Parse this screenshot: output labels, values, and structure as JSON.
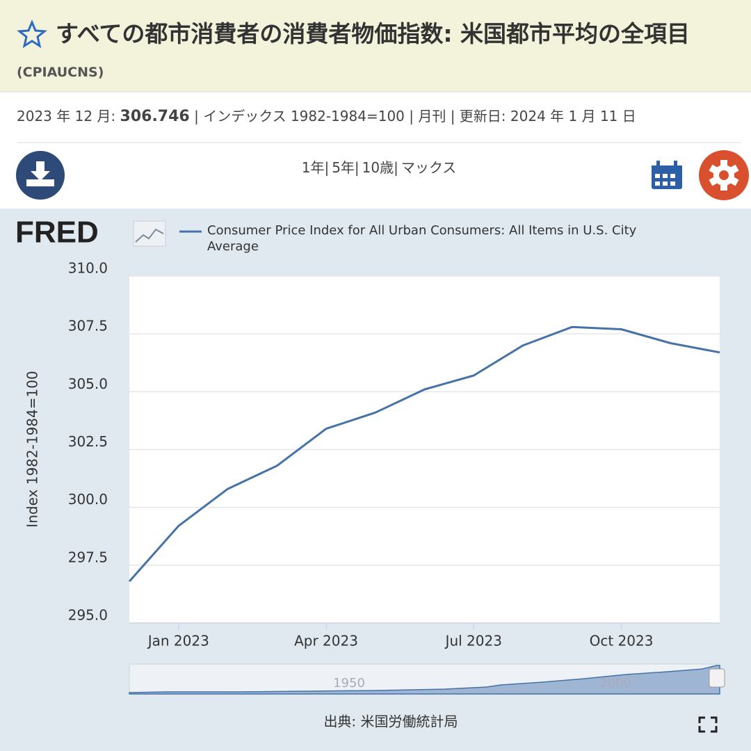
{
  "header": {
    "title": "すべての都市消費者の消費者物価指数: 米国都市平均の全項目",
    "series_id": "(CPIAUCNS)"
  },
  "info": {
    "date_label": "2023 年 12 月:",
    "value": "306.746",
    "rest": "| インデックス 1982-1984=100 | 月刊 | 更新日: 2024 年 1 月 11 日"
  },
  "toolbar": {
    "ranges": [
      "1年|",
      "5年|",
      "10歳|",
      "マックス"
    ]
  },
  "chart_data": {
    "type": "line",
    "logo": "FRED",
    "y_label": "Index 1982-1984=100",
    "x": [
      "2022-12",
      "2023-01",
      "2023-02",
      "2023-03",
      "2023-04",
      "2023-05",
      "2023-06",
      "2023-07",
      "2023-08",
      "2023-09",
      "2023-10",
      "2023-11",
      "2023-12"
    ],
    "series": [
      {
        "name": "Consumer Price Index for All Urban Consumers: All Items in U.S. City Average",
        "color": "#4572a7",
        "values": [
          296.8,
          299.2,
          300.8,
          301.8,
          303.4,
          304.1,
          305.1,
          305.7,
          307.0,
          307.8,
          307.7,
          307.1,
          306.7
        ]
      }
    ],
    "xlim": [
      "2022-12",
      "2023-12"
    ],
    "xticks": [
      {
        "value": "2023-01",
        "label": "Jan 2023"
      },
      {
        "value": "2023-04",
        "label": "Apr 2023"
      },
      {
        "value": "2023-07",
        "label": "Jul 2023"
      },
      {
        "value": "2023-10",
        "label": "Oct 2023"
      }
    ],
    "ylim": [
      295,
      310
    ],
    "yticks": [
      {
        "value": 295,
        "label": "295.0"
      },
      297.5,
      {
        "value": 300,
        "label": "300.0"
      },
      302.5,
      {
        "value": 305,
        "label": "305.0"
      },
      307.5,
      {
        "value": 310,
        "label": "310.0"
      }
    ],
    "grid": true,
    "navigator_labels": [
      "1950",
      "2000"
    ],
    "source": "出典: 米国労働統計局"
  }
}
